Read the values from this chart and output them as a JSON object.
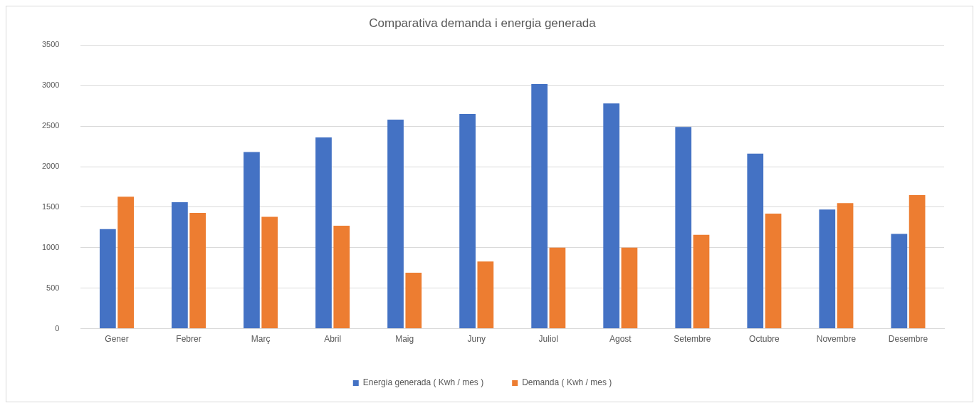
{
  "chart_data": {
    "type": "bar",
    "title": "Comparativa demanda i energia generada",
    "categories": [
      "Gener",
      "Febrer",
      "Març",
      "Abril",
      "Maig",
      "Juny",
      "Juliol",
      "Agost",
      "Setembre",
      "Octubre",
      "Novembre",
      "Desembre"
    ],
    "series": [
      {
        "name": "Energia generada ( Kwh / mes )",
        "color": "#4472c4",
        "values": [
          1230,
          1560,
          2180,
          2360,
          2580,
          2650,
          3020,
          2780,
          2490,
          2160,
          1470,
          1170
        ]
      },
      {
        "name": "Demanda ( Kwh / mes )",
        "color": "#ed7d31",
        "values": [
          1630,
          1430,
          1380,
          1270,
          690,
          830,
          1000,
          1000,
          1160,
          1420,
          1550,
          1650
        ]
      }
    ],
    "ylim": [
      0,
      3500
    ],
    "yticks": [
      0,
      500,
      1000,
      1500,
      2000,
      2500,
      3000,
      3500
    ],
    "grid": "y",
    "legend": "bottom"
  }
}
